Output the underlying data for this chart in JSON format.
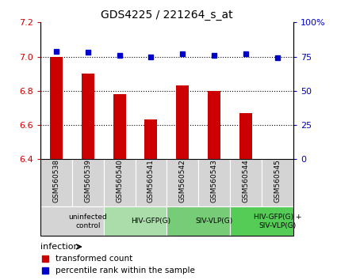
{
  "title": "GDS4225 / 221264_s_at",
  "samples": [
    "GSM560538",
    "GSM560539",
    "GSM560540",
    "GSM560541",
    "GSM560542",
    "GSM560543",
    "GSM560544",
    "GSM560545"
  ],
  "transformed_counts": [
    7.0,
    6.9,
    6.78,
    6.63,
    6.83,
    6.8,
    6.67,
    6.4
  ],
  "percentile_ranks": [
    79,
    78,
    76,
    75,
    77,
    76,
    77,
    74
  ],
  "ylim_left": [
    6.4,
    7.2
  ],
  "ylim_right": [
    0,
    100
  ],
  "yticks_left": [
    6.4,
    6.6,
    6.8,
    7.0,
    7.2
  ],
  "yticks_right": [
    0,
    25,
    50,
    75,
    100
  ],
  "ytick_labels_right": [
    "0",
    "25",
    "50",
    "75",
    "100%"
  ],
  "groups": [
    {
      "label": "uninfected\ncontrol",
      "start": 0,
      "end": 2,
      "color": "#d4d4d4"
    },
    {
      "label": "HIV-GFP(G)",
      "start": 2,
      "end": 4,
      "color": "#aaddaa"
    },
    {
      "label": "SIV-VLP(G)",
      "start": 4,
      "end": 6,
      "color": "#77cc77"
    },
    {
      "label": "HIV-GFP(G) +\nSIV-VLP(G)",
      "start": 6,
      "end": 8,
      "color": "#55cc55"
    }
  ],
  "bar_color": "#cc0000",
  "dot_color": "#0000cc",
  "sample_bg_color": "#d4d4d4",
  "legend_red_label": "transformed count",
  "legend_blue_label": "percentile rank within the sample",
  "infection_label": "infection",
  "bar_width": 0.4,
  "gridline_yticks": [
    6.6,
    6.8,
    7.0
  ]
}
